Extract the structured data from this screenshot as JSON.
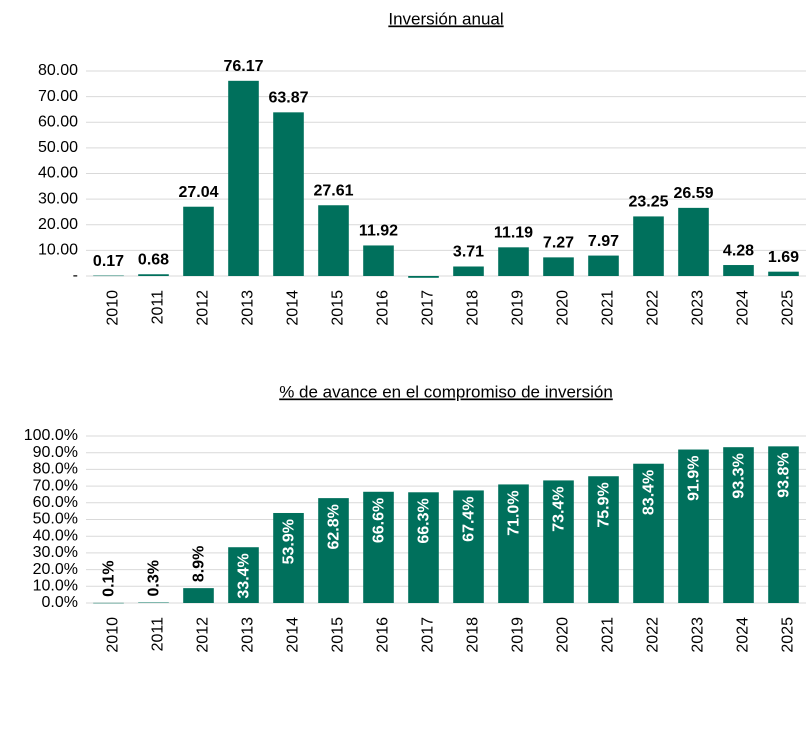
{
  "chart_data": [
    {
      "type": "bar",
      "title": "Inversión anual",
      "categories": [
        "2010",
        "2011",
        "2012",
        "2013",
        "2014",
        "2015",
        "2016",
        "2017",
        "2018",
        "2019",
        "2020",
        "2021",
        "2022",
        "2023",
        "2024",
        "2025"
      ],
      "values": [
        0.17,
        0.68,
        27.04,
        76.17,
        63.87,
        27.61,
        11.92,
        -0.7,
        3.71,
        11.19,
        7.27,
        7.97,
        23.25,
        26.59,
        4.28,
        1.69
      ],
      "value_labels": [
        "0.17",
        "0.68",
        "27.04",
        "76.17",
        "63.87",
        "27.61",
        "11.92",
        null,
        "3.71",
        "11.19",
        "7.27",
        "7.97",
        "23.25",
        "26.59",
        "4.28",
        "1.69"
      ],
      "color": "#00705c",
      "ylim": [
        0,
        80
      ],
      "yticks": [
        {
          "value": 0,
          "label": "-"
        },
        {
          "value": 10,
          "label": "10.00"
        },
        {
          "value": 20,
          "label": "20.00"
        },
        {
          "value": 30,
          "label": "30.00"
        },
        {
          "value": 40,
          "label": "40.00"
        },
        {
          "value": 50,
          "label": "50.00"
        },
        {
          "value": 60,
          "label": "60.00"
        },
        {
          "value": 70,
          "label": "70.00"
        },
        {
          "value": 80,
          "label": "80.00"
        }
      ],
      "grid": true
    },
    {
      "type": "bar",
      "title": "% de avance en el compromiso de inversión",
      "categories": [
        "2010",
        "2011",
        "2012",
        "2013",
        "2014",
        "2015",
        "2016",
        "2017",
        "2018",
        "2019",
        "2020",
        "2021",
        "2022",
        "2023",
        "2024",
        "2025"
      ],
      "values": [
        0.1,
        0.3,
        8.9,
        33.4,
        53.9,
        62.8,
        66.6,
        66.3,
        67.4,
        71.0,
        73.4,
        75.9,
        83.4,
        91.9,
        93.3,
        93.8
      ],
      "value_labels": [
        "0.1%",
        "0.3%",
        "8.9%",
        "33.4%",
        "53.9%",
        "62.8%",
        "66.6%",
        "66.3%",
        "67.4%",
        "71.0%",
        "73.4%",
        "75.9%",
        "83.4%",
        "91.9%",
        "93.3%",
        "93.8%"
      ],
      "color": "#00705c",
      "ylim": [
        0,
        100
      ],
      "yticks": [
        {
          "value": 0,
          "label": "0.0%"
        },
        {
          "value": 10,
          "label": "10.0%"
        },
        {
          "value": 20,
          "label": "20.0%"
        },
        {
          "value": 30,
          "label": "30.0%"
        },
        {
          "value": 40,
          "label": "40.0%"
        },
        {
          "value": 50,
          "label": "50.0%"
        },
        {
          "value": 60,
          "label": "60.0%"
        },
        {
          "value": 70,
          "label": "70.0%"
        },
        {
          "value": 80,
          "label": "80.0%"
        },
        {
          "value": 90,
          "label": "90.0%"
        },
        {
          "value": 100,
          "label": "100.0%"
        }
      ],
      "grid": true
    }
  ]
}
